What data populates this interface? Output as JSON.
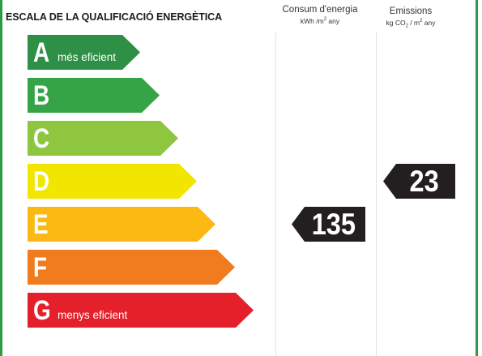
{
  "title": "ESCALA DE LA QUALIFICACIÓ ENERGÈTICA",
  "columns": {
    "consumption": {
      "label": "Consum d'energia",
      "unit_prefix": "kWh /m",
      "unit_exp": "2",
      "unit_suffix": " any"
    },
    "emissions": {
      "label": "Emissions",
      "unit_prefix": "kg CO",
      "unit_sub": "2",
      "unit_mid": " / m",
      "unit_exp": "2",
      "unit_suffix": " any"
    }
  },
  "ratings": [
    {
      "letter": "A",
      "caption": "més eficient",
      "color": "#2e8f46"
    },
    {
      "letter": "B",
      "caption": "",
      "color": "#34a447"
    },
    {
      "letter": "C",
      "caption": "",
      "color": "#8ec63f"
    },
    {
      "letter": "D",
      "caption": "",
      "color": "#f2e500"
    },
    {
      "letter": "E",
      "caption": "",
      "color": "#fdb913"
    },
    {
      "letter": "F",
      "caption": "",
      "color": "#f07c1f"
    },
    {
      "letter": "G",
      "caption": "menys eficient",
      "color": "#e4202b"
    }
  ],
  "results": {
    "consumption": {
      "value": "135",
      "rating": "E"
    },
    "emissions": {
      "value": "23",
      "rating": "D"
    }
  }
}
